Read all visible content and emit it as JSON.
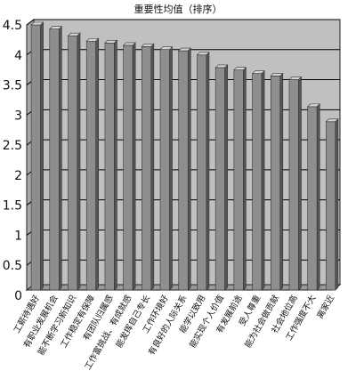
{
  "chart_data": {
    "type": "bar",
    "title": "重要性均值（排序）",
    "xlabel": "",
    "ylabel": "",
    "ylim": [
      0,
      4.5
    ],
    "yticks": [
      "0",
      "0.5",
      "1",
      "1.5",
      "2",
      "2.5",
      "3",
      "3.5",
      "4",
      "4.5"
    ],
    "grid": true,
    "legend": "none",
    "categories": [
      "工薪待遇好",
      "有职业发展机会",
      "能不断学习新知识",
      "工作稳定有保障",
      "有团队归属感",
      "工作富挑战、有成就感",
      "能发挥自己专长",
      "工作环境好",
      "有良好的人际关系",
      "能学以致用",
      "能实现个人价值",
      "有发展前途",
      "受人尊重",
      "能为社会做贡献",
      "社会地位高",
      "工作强度不大",
      "离家近"
    ],
    "values": [
      4.5,
      4.43,
      4.32,
      4.23,
      4.2,
      4.16,
      4.14,
      4.09,
      4.07,
      4.0,
      3.79,
      3.75,
      3.69,
      3.65,
      3.59,
      3.14,
      2.89
    ],
    "colors": {
      "plot_background": "#c0c0c0",
      "bar_face": "#8e8e8e",
      "bar_side": "#555555",
      "bar_top": "#d4d4d4",
      "gridline": "#000000"
    }
  }
}
